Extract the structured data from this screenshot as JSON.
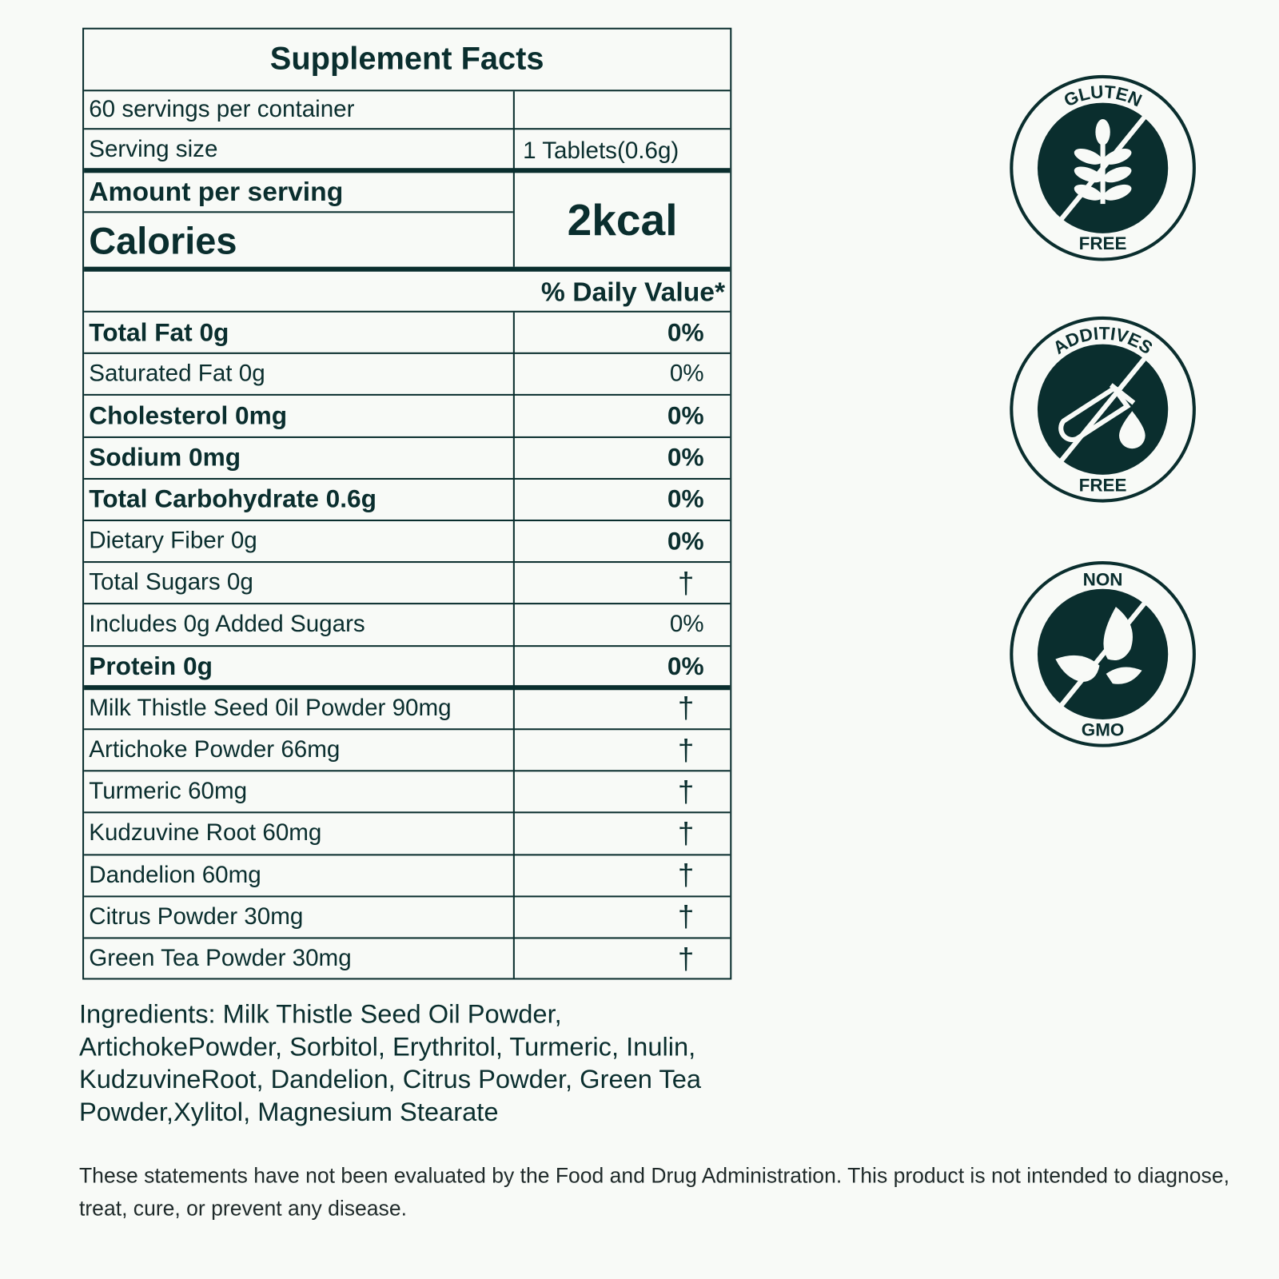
{
  "label": {
    "title": "Supplement Facts",
    "servings_per_container": "60 servings per container",
    "serving_size_label": "Serving size",
    "serving_size_value": "1 Tablets(0.6g)",
    "amount_per_serving": "Amount per serving",
    "calories_label": "Calories",
    "calories_value": "2kcal",
    "daily_value_header": "% Daily Value*",
    "nutrients": [
      {
        "name": "Total Fat 0g",
        "dv": "0%",
        "bold": true,
        "dv_bold": true
      },
      {
        "name": "Saturated Fat 0g",
        "dv": "0%",
        "bold": false,
        "dv_bold": false
      },
      {
        "name": "Cholesterol 0mg",
        "dv": "0%",
        "bold": true,
        "dv_bold": true
      },
      {
        "name": "Sodium 0mg",
        "dv": "0%",
        "bold": true,
        "dv_bold": true
      },
      {
        "name": "Total Carbohydrate 0.6g",
        "dv": "0%",
        "bold": true,
        "dv_bold": true
      },
      {
        "name": "Dietary Fiber 0g",
        "dv": "0%",
        "bold": false,
        "dv_bold": true
      },
      {
        "name": "Total Sugars 0g",
        "dv": "†",
        "bold": false,
        "dv_bold": false
      },
      {
        "name": "Includes 0g Added Sugars",
        "dv": "0%",
        "bold": false,
        "dv_bold": false
      },
      {
        "name": "Protein 0g",
        "dv": "0%",
        "bold": true,
        "dv_bold": true
      },
      {
        "name": "Milk Thistle Seed 0il Powder 90mg",
        "dv": "†",
        "bold": false,
        "dv_bold": false
      },
      {
        "name": "Artichoke Powder 66mg",
        "dv": "†",
        "bold": false,
        "dv_bold": false
      },
      {
        "name": "Turmeric 60mg",
        "dv": "†",
        "bold": false,
        "dv_bold": false
      },
      {
        "name": "Kudzuvine Root 60mg",
        "dv": "†",
        "bold": false,
        "dv_bold": false
      },
      {
        "name": "Dandelion 60mg",
        "dv": "†",
        "bold": false,
        "dv_bold": false
      },
      {
        "name": "Citrus Powder 30mg",
        "dv": "†",
        "bold": false,
        "dv_bold": false
      },
      {
        "name": "Green Tea Powder 30mg",
        "dv": "†",
        "bold": false,
        "dv_bold": false
      }
    ]
  },
  "ingredients": "Ingredients: Milk Thistle Seed Oil Powder, ArtichokePowder, Sorbitol, Erythritol, Turmeric, Inulin, KudzuvineRoot, Dandelion, Citrus Powder, Green Tea Powder,Xylitol, Magnesium Stearate",
  "disclaimer": "These statements have not been evaluated by the Food and Drug Administration. This product is not intended to diagnose, treat, cure, or prevent any disease.",
  "badges": [
    {
      "top": "GLUTEN",
      "bottom": "FREE",
      "icon": "wheat-icon"
    },
    {
      "top": "ADDITIVES",
      "bottom": "FREE",
      "icon": "test-tube-drop-icon"
    },
    {
      "top": "NON",
      "bottom": "GMO",
      "icon": "leaves-icon"
    }
  ],
  "colors": {
    "ink": "#0a2e2e",
    "background": "#f8faf7"
  }
}
